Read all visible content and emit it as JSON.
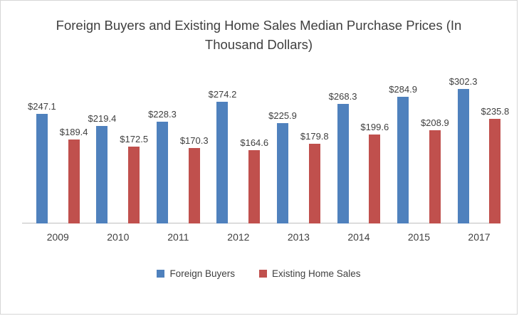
{
  "title": "Foreign Buyers and Existing Home Sales Median Purchase Prices (In Thousand Dollars)",
  "chart_data": {
    "type": "bar",
    "categories": [
      "2009",
      "2010",
      "2011",
      "2012",
      "2013",
      "2014",
      "2015",
      "2017"
    ],
    "series": [
      {
        "name": "Foreign Buyers",
        "color": "#4F81BD",
        "values": [
          247.1,
          219.4,
          228.3,
          274.2,
          225.9,
          268.3,
          284.9,
          302.3
        ],
        "data_labels": [
          "$247.1",
          "$219.4",
          "$228.3",
          "$274.2",
          "$225.9",
          "$268.3",
          "$284.9",
          "$302.3"
        ]
      },
      {
        "name": "Existing Home Sales",
        "color": "#C0504D",
        "values": [
          189.4,
          172.5,
          170.3,
          164.6,
          179.8,
          199.6,
          208.9,
          235.8
        ],
        "data_labels": [
          "$189.4",
          "$172.5",
          "$170.3",
          "$164.6",
          "$179.8",
          "$199.6",
          "$208.9",
          "$235.8"
        ]
      }
    ],
    "title": "Foreign Buyers and Existing Home Sales Median Purchase Prices (In Thousand Dollars)",
    "xlabel": "",
    "ylabel": "",
    "ylim": [
      0,
      320
    ],
    "grid": false,
    "data_labels_shown": true,
    "legend_position": "bottom"
  }
}
